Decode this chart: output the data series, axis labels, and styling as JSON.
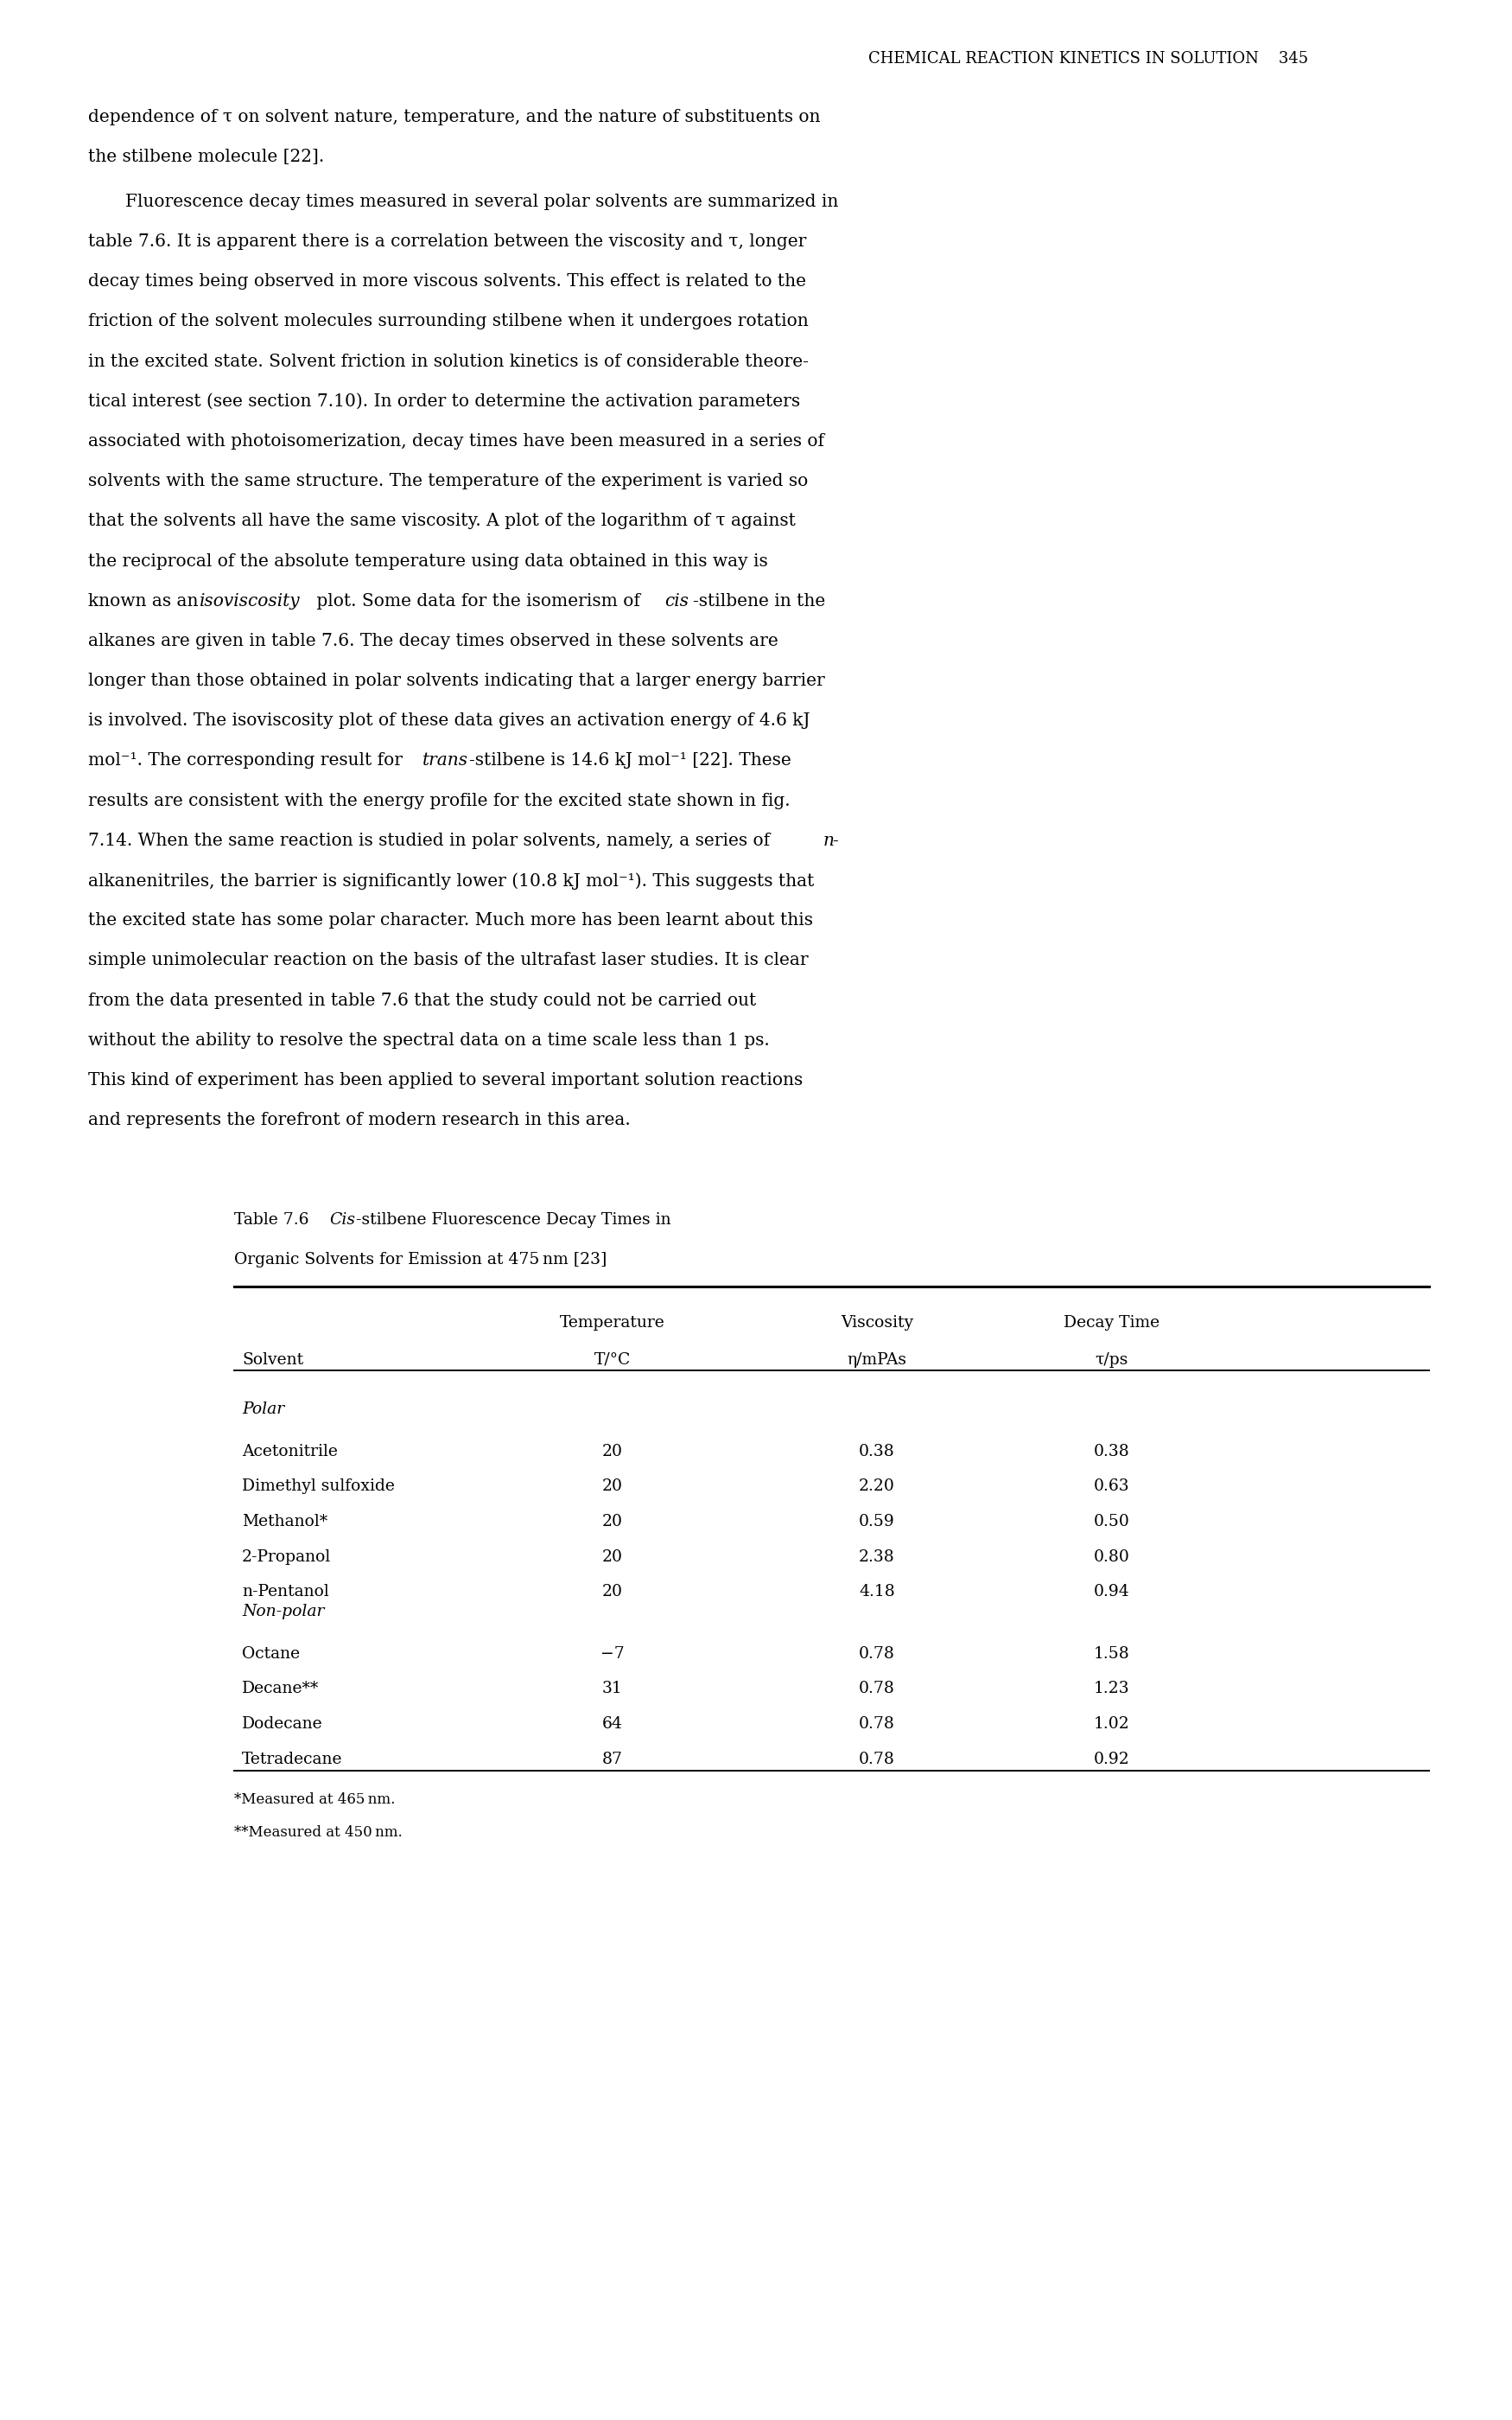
{
  "page_header": "CHEMICAL REACTION KINETICS IN SOLUTION    345",
  "body_text": [
    "dependence of τ on solvent nature, temperature, and the nature of substituents on",
    "the stilbene molecule [22].",
    "    Fluorescence decay times measured in several polar solvents are summarized in",
    "table 7.6. It is apparent there is a correlation between the viscosity and τ, longer",
    "decay times being observed in more viscous solvents. This effect is related to the",
    "friction of the solvent molecules surrounding stilbene when it undergoes rotation",
    "in the excited state. Solvent friction in solution kinetics is of considerable theore-",
    "tical interest (see section 7.10). In order to determine the activation parameters",
    "associated with photoisomerization, decay times have been measured in a series of",
    "solvents with the same structure. The temperature of the experiment is varied so",
    "that the solvents all have the same viscosity. A plot of the logarithm of τ against",
    "the reciprocal of the absolute temperature using data obtained in this way is",
    "known as an |isoviscosity| plot. Some data for the isomerism of |cis|-stilbene in the",
    "alkanes are given in table 7.6. The decay times observed in these solvents are",
    "longer than those obtained in polar solvents indicating that a larger energy barrier",
    "is involved. The isoviscosity plot of these data gives an activation energy of 4.6 kJ",
    "mol⁻¹. The corresponding result for |trans|-stilbene is 14.6 kJ mol⁻¹ [22]. These",
    "results are consistent with the energy profile for the excited state shown in fig.",
    "7.14. When the same reaction is studied in polar solvents, namely, a series of |n|-",
    "alkanenitriles, the barrier is significantly lower (10.8 kJ mol⁻¹). This suggests that",
    "the excited state has some polar character. Much more has been learnt about this",
    "simple unimolecular reaction on the basis of the ultrafast laser studies. It is clear",
    "from the data presented in table 7.6 that the study could not be carried out",
    "without the ability to resolve the spectral data on a time scale less than 1 ps.",
    "This kind of experiment has been applied to several important solution reactions",
    "and represents the forefront of modern research in this area."
  ],
  "table_caption_line1_pre": "Table 7.6  ",
  "table_caption_line1_italic": "Cis",
  "table_caption_line1_post": "-stilbene Fluorescence Decay Times in",
  "table_caption_line2": "Organic Solvents for Emission at 475 nm [23]",
  "col_headers_line1": [
    "",
    "Temperature",
    "Viscosity",
    "Decay Time"
  ],
  "col_headers_line2": [
    "Solvent",
    "T/°C",
    "η/mPAs",
    "τ/ps"
  ],
  "section_polar": "Polar",
  "polar_rows": [
    [
      "Acetonitrile",
      "20",
      "0.38",
      "0.38"
    ],
    [
      "Dimethyl sulfoxide",
      "20",
      "2.20",
      "0.63"
    ],
    [
      "Methanol*",
      "20",
      "0.59",
      "0.50"
    ],
    [
      "2-Propanol",
      "20",
      "2.38",
      "0.80"
    ],
    [
      "n-Pentanol",
      "20",
      "4.18",
      "0.94"
    ]
  ],
  "section_nonpolar": "Non-polar",
  "nonpolar_rows": [
    [
      "Octane",
      "−7",
      "0.78",
      "1.58"
    ],
    [
      "Decane**",
      "31",
      "0.78",
      "1.23"
    ],
    [
      "Dodecane",
      "64",
      "0.78",
      "1.02"
    ],
    [
      "Tetradecane",
      "87",
      "0.78",
      "0.92"
    ]
  ],
  "footnote1": "*Measured at 465 nm.",
  "footnote2": "**Measured at 450 nm.",
  "bg_color": "#ffffff",
  "text_color": "#000000",
  "body_fontsize": 14.5,
  "header_fontsize": 13.0,
  "table_fontsize": 13.5
}
